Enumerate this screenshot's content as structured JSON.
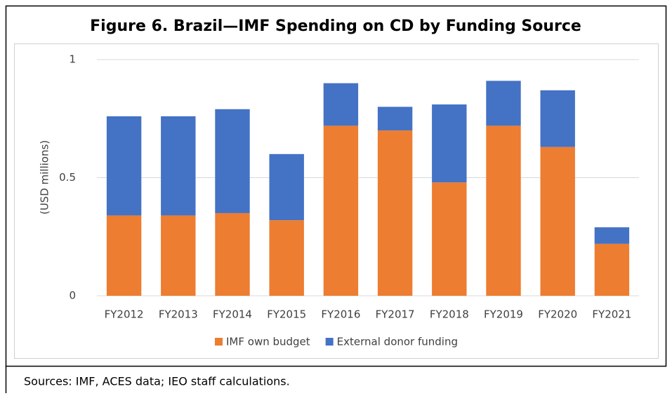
{
  "chart_data": {
    "type": "stacked_bar",
    "title": "Figure 6. Brazil—IMF Spending on CD by Funding Source",
    "y_label": "(USD millions)",
    "source": "Sources: IMF, ACES data; IEO staff calculations.",
    "categories": [
      "FY2012",
      "FY2013",
      "FY2014",
      "FY2015",
      "FY2016",
      "FY2017",
      "FY2018",
      "FY2019",
      "FY2020",
      "FY2021"
    ],
    "series": [
      {
        "name": "IMF own budget",
        "color": "#ed7d31",
        "values": [
          0.34,
          0.34,
          0.35,
          0.32,
          0.72,
          0.7,
          0.48,
          0.72,
          0.63,
          0.22
        ]
      },
      {
        "name": "External donor funding",
        "color": "#4472c4",
        "values": [
          0.42,
          0.42,
          0.44,
          0.28,
          0.18,
          0.1,
          0.33,
          0.19,
          0.24,
          0.07
        ]
      }
    ],
    "ylim": [
      0,
      1
    ],
    "yticks": [
      0,
      0.5,
      1
    ],
    "grid": true,
    "legend": "bottom"
  }
}
